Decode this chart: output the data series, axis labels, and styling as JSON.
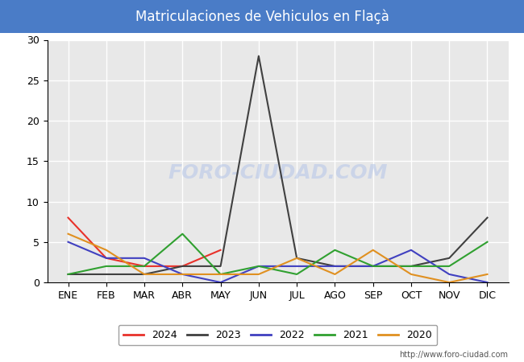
{
  "title": "Matriculaciones de Vehiculos en Flaçà",
  "title_bg_color": "#4a7cc7",
  "title_text_color": "#ffffff",
  "months": [
    "ENE",
    "FEB",
    "MAR",
    "ABR",
    "MAY",
    "JUN",
    "JUL",
    "AGO",
    "SEP",
    "OCT",
    "NOV",
    "DIC"
  ],
  "ylim": [
    0,
    30
  ],
  "yticks": [
    0,
    5,
    10,
    15,
    20,
    25,
    30
  ],
  "series": {
    "2024": {
      "color": "#e8312a",
      "data": [
        8,
        3,
        2,
        2,
        4,
        null,
        null,
        null,
        null,
        null,
        null,
        null
      ]
    },
    "2023": {
      "color": "#404040",
      "data": [
        1,
        1,
        1,
        2,
        2,
        28,
        3,
        2,
        2,
        2,
        3,
        8
      ]
    },
    "2022": {
      "color": "#4040c0",
      "data": [
        5,
        3,
        3,
        1,
        0,
        2,
        2,
        2,
        2,
        4,
        1,
        0
      ]
    },
    "2021": {
      "color": "#30a030",
      "data": [
        1,
        2,
        2,
        6,
        1,
        2,
        1,
        4,
        2,
        2,
        2,
        5
      ]
    },
    "2020": {
      "color": "#e09020",
      "data": [
        6,
        4,
        1,
        1,
        1,
        1,
        3,
        1,
        4,
        1,
        0,
        1
      ]
    }
  },
  "watermark": "FORO-CIUDAD.COM",
  "url": "http://www.foro-ciudad.com",
  "fig_bg_color": "#ffffff",
  "plot_bg_color": "#e8e8e8",
  "grid_color": "#ffffff",
  "legend_order": [
    "2024",
    "2023",
    "2022",
    "2021",
    "2020"
  ],
  "title_fontsize": 12
}
